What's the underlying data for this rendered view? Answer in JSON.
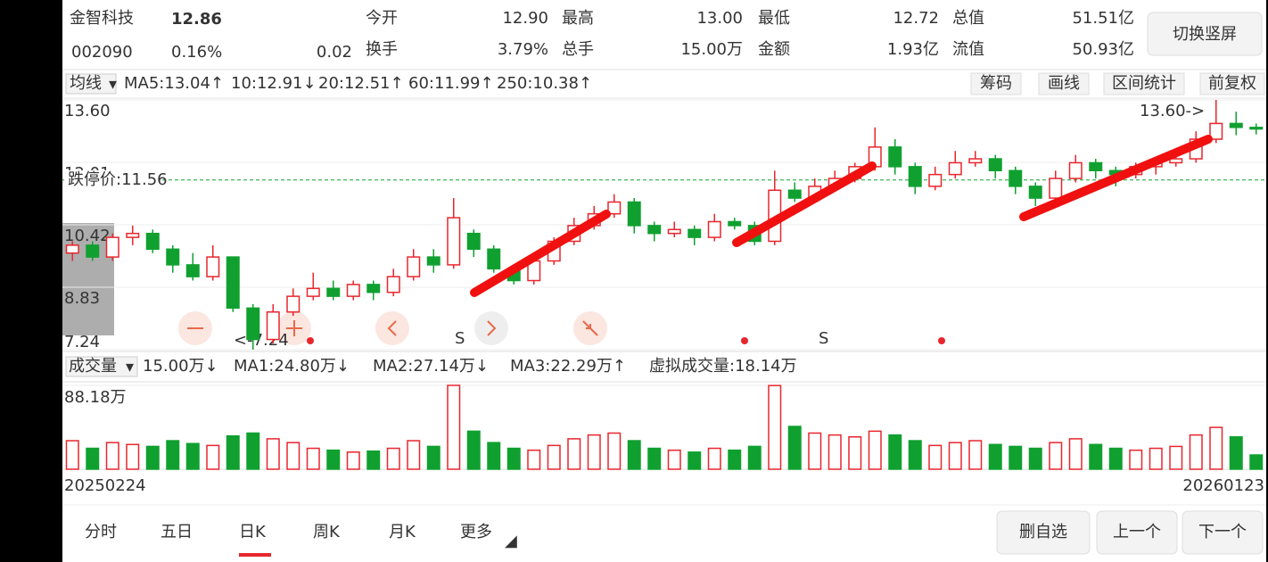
{
  "header": {
    "name": "金智科技",
    "price": "12.86",
    "code": "002090",
    "change_pct": "0.16%",
    "change": "0.02",
    "switch_button": "切换竖屏"
  },
  "stats": [
    {
      "label": "今开",
      "value": "12.90"
    },
    {
      "label": "最高",
      "value": "13.00"
    },
    {
      "label": "最低",
      "value": "12.72"
    },
    {
      "label": "总值",
      "value": "51.51亿"
    },
    {
      "label": "换手",
      "value": "3.79%"
    },
    {
      "label": "总手",
      "value": "15.00万"
    },
    {
      "label": "金额",
      "value": "1.93亿"
    },
    {
      "label": "流值",
      "value": "50.93亿"
    }
  ],
  "ma_bar": {
    "selector": "均线",
    "items": [
      "MA5:13.04↑",
      "10:12.91↓",
      "20:12.51↑",
      "60:11.99↑",
      "250:10.38↑"
    ],
    "tools": [
      "筹码",
      "画线",
      "区间统计",
      "前复权"
    ]
  },
  "volume_bar": {
    "selector": "成交量",
    "items": [
      "15.00万↓",
      "MA1:24.80万↓",
      "MA2:27.14万↓",
      "MA3:22.29万↑",
      "虚拟成交量:18.14万"
    ]
  },
  "chart_data": {
    "type": "candlestick",
    "categories": [
      "20250224",
      null,
      null,
      null,
      null,
      null,
      null,
      null,
      null,
      null,
      null,
      null,
      null,
      null,
      null,
      null,
      null,
      null,
      null,
      null,
      null,
      null,
      null,
      null,
      null,
      null,
      null,
      null,
      null,
      null,
      null,
      null,
      null,
      null,
      null,
      null,
      null,
      null,
      null,
      null,
      null,
      null,
      null,
      null,
      null,
      null,
      null,
      null,
      null,
      null,
      null,
      null,
      null,
      null,
      null,
      null,
      null,
      null,
      null,
      "20260123"
    ],
    "open": [
      9.7,
      9.9,
      9.6,
      10.1,
      10.2,
      9.8,
      9.4,
      9.1,
      9.6,
      8.3,
      7.5,
      8.2,
      8.6,
      8.8,
      8.6,
      8.9,
      8.7,
      9.1,
      9.6,
      9.4,
      10.2,
      9.8,
      9.3,
      9.0,
      9.5,
      10.0,
      10.4,
      10.7,
      11.0,
      10.4,
      10.2,
      10.3,
      10.1,
      10.5,
      10.4,
      10.0,
      11.3,
      11.1,
      11.4,
      11.6,
      11.9,
      12.4,
      11.9,
      11.4,
      11.7,
      12.0,
      12.1,
      11.8,
      11.4,
      11.1,
      11.6,
      12.0,
      11.8,
      11.7,
      11.9,
      12.0,
      12.1,
      12.6,
      13.0,
      12.9
    ],
    "high": [
      10.0,
      10.0,
      10.2,
      10.4,
      10.3,
      9.9,
      9.7,
      9.9,
      9.6,
      8.4,
      8.4,
      8.8,
      9.2,
      9.0,
      9.0,
      9.0,
      9.3,
      9.8,
      9.8,
      11.1,
      10.3,
      9.9,
      9.4,
      9.6,
      10.1,
      10.6,
      10.9,
      11.2,
      11.1,
      10.5,
      10.5,
      10.4,
      10.7,
      10.6,
      10.5,
      11.8,
      11.5,
      11.6,
      11.8,
      12.0,
      12.9,
      12.6,
      12.0,
      11.9,
      12.3,
      12.3,
      12.2,
      11.9,
      11.5,
      11.8,
      12.2,
      12.1,
      11.9,
      12.0,
      12.1,
      12.3,
      12.8,
      13.6,
      13.3,
      13.0
    ],
    "low": [
      9.5,
      9.5,
      9.5,
      9.9,
      9.7,
      9.2,
      9.0,
      9.0,
      8.2,
      7.24,
      7.4,
      8.1,
      8.5,
      8.5,
      8.5,
      8.5,
      8.6,
      9.0,
      9.2,
      9.3,
      9.6,
      9.2,
      8.9,
      8.9,
      9.4,
      9.9,
      10.3,
      10.6,
      10.2,
      10.0,
      10.1,
      9.9,
      10.0,
      10.3,
      9.9,
      9.9,
      11.0,
      11.0,
      11.3,
      11.5,
      11.8,
      11.7,
      11.2,
      11.3,
      11.6,
      11.9,
      11.6,
      11.2,
      10.9,
      11.0,
      11.5,
      11.6,
      11.4,
      11.6,
      11.7,
      11.9,
      12.0,
      12.5,
      12.7,
      12.72
    ],
    "close": [
      9.9,
      9.6,
      10.1,
      10.2,
      9.8,
      9.4,
      9.1,
      9.6,
      8.3,
      7.5,
      8.2,
      8.6,
      8.8,
      8.6,
      8.9,
      8.7,
      9.1,
      9.6,
      9.4,
      10.6,
      9.8,
      9.3,
      9.0,
      9.5,
      10.0,
      10.4,
      10.7,
      11.0,
      10.4,
      10.2,
      10.3,
      10.1,
      10.5,
      10.4,
      10.0,
      11.3,
      11.1,
      11.4,
      11.6,
      11.9,
      12.4,
      11.9,
      11.4,
      11.7,
      12.0,
      12.1,
      11.8,
      11.4,
      11.1,
      11.6,
      12.0,
      11.8,
      11.7,
      11.9,
      12.0,
      12.1,
      12.6,
      13.0,
      12.9,
      12.86
    ],
    "ylim": [
      7.24,
      13.6
    ],
    "yticks": [
      {
        "value": 13.6,
        "label": "13.60"
      },
      12.01,
      10.42,
      8.83,
      7.24
    ],
    "limit_down": {
      "label": "跌停价:11.56",
      "value": 11.56
    },
    "volume": [
      30,
      22,
      28,
      26,
      24,
      30,
      27,
      25,
      35,
      38,
      32,
      28,
      22,
      20,
      18,
      19,
      22,
      30,
      24,
      88.18,
      40,
      28,
      22,
      20,
      25,
      32,
      36,
      38,
      30,
      22,
      20,
      18,
      22,
      20,
      24,
      88,
      45,
      38,
      36,
      34,
      40,
      36,
      30,
      25,
      28,
      30,
      26,
      24,
      22,
      28,
      32,
      26,
      22,
      20,
      22,
      24,
      36,
      44,
      34,
      15
    ],
    "volume_ylim": [
      0,
      88.18
    ],
    "volume_yticks": [
      {
        "value": 88.18,
        "label": "88.18万"
      }
    ],
    "annotations": [
      "13.60->",
      "<-7.24",
      "S",
      "S"
    ],
    "up_color": "#e8262d",
    "down_color": "#10a030"
  },
  "tabs": [
    "分时",
    "五日",
    "日K",
    "周K",
    "月K",
    "更多"
  ],
  "buttons": [
    "删自选",
    "上一个",
    "下一个"
  ]
}
